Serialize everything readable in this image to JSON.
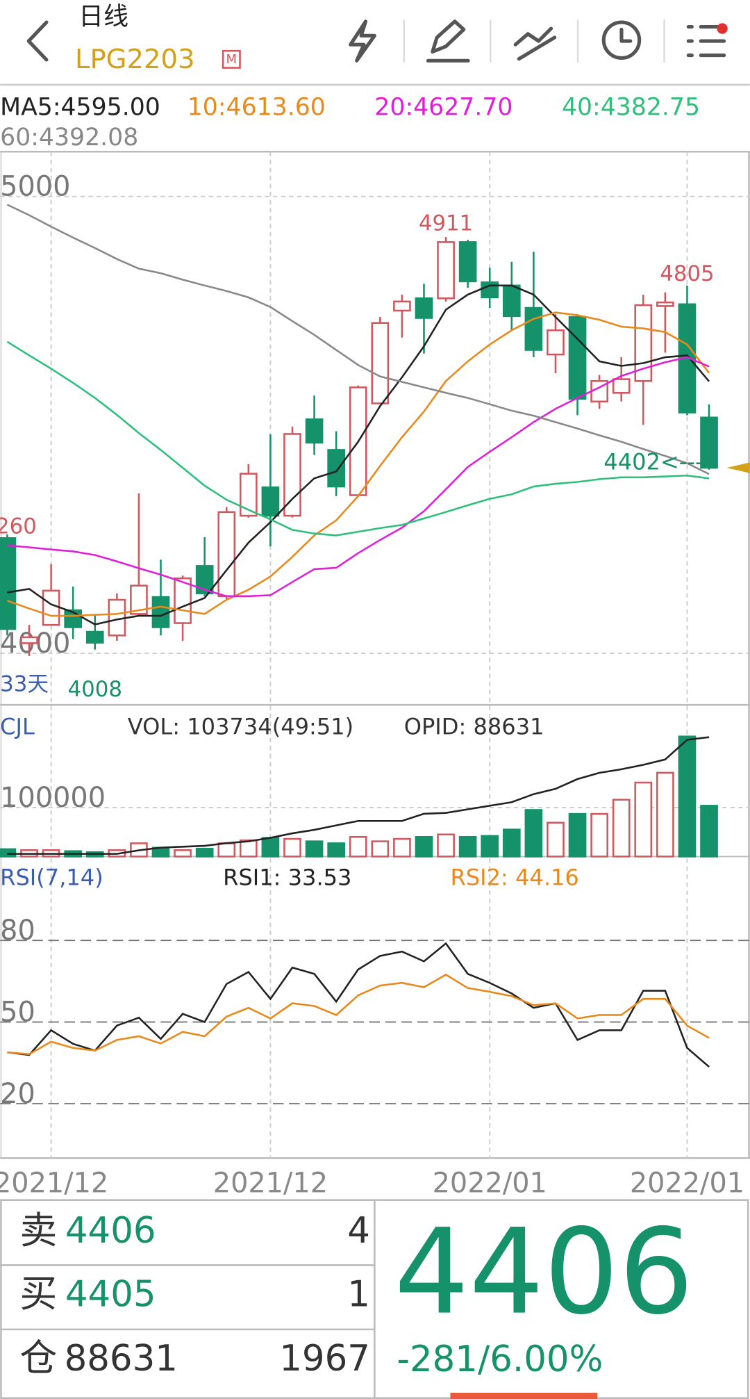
{
  "header": {
    "title": "日线",
    "symbol": "LPG2203",
    "badge": "M"
  },
  "chart_data": [
    {
      "type": "candlestick",
      "period_label": "33天",
      "marker_label": "4402<---",
      "categories": [
        null,
        null,
        "2021/12",
        null,
        null,
        null,
        null,
        null,
        null,
        null,
        null,
        null,
        "2021/12",
        null,
        null,
        null,
        null,
        null,
        null,
        null,
        null,
        null,
        "2022/01",
        null,
        null,
        null,
        null,
        null,
        null,
        null,
        null,
        "2022/01",
        null
      ],
      "open": [
        4252,
        4022,
        4062,
        4094,
        4047,
        4039,
        4086,
        4123,
        4066,
        4191,
        4125,
        4301,
        4363,
        4301,
        4512,
        4445,
        4346,
        4547,
        4750,
        4777,
        4777,
        4900,
        4812,
        4805,
        4756,
        4654,
        4736,
        4551,
        4570,
        4596,
        4760,
        4764,
        4516
      ],
      "close": [
        4053,
        4035,
        4137,
        4057,
        4023,
        4117,
        4148,
        4057,
        4164,
        4131,
        4309,
        4393,
        4301,
        4480,
        4461,
        4365,
        4582,
        4723,
        4770,
        4734,
        4900,
        4814,
        4779,
        4738,
        4664,
        4707,
        4557,
        4596,
        4600,
        4762,
        4768,
        4527,
        4406
      ],
      "high": [
        4260,
        4062,
        4195,
        4146,
        4082,
        4131,
        4350,
        4205,
        4170,
        4254,
        4320,
        4414,
        4479,
        4496,
        4564,
        4486,
        4586,
        4736,
        4785,
        4809,
        4911,
        4905,
        4844,
        4857,
        4879,
        4742,
        4742,
        4609,
        4648,
        4785,
        4790,
        4805,
        4545
      ],
      "low": [
        4039,
        3994,
        4062,
        4031,
        4008,
        4027,
        4082,
        4039,
        4027,
        4125,
        4117,
        4297,
        4234,
        4297,
        4434,
        4344,
        4344,
        4547,
        4691,
        4656,
        4770,
        4800,
        4756,
        4707,
        4648,
        4613,
        4521,
        4535,
        4551,
        4500,
        4658,
        4521,
        4402
      ],
      "up_color": "#d0585e",
      "down_color": "#15926a",
      "ylim": [
        3887,
        5098
      ],
      "yticks": [
        4000,
        5000
      ],
      "grid": true,
      "series": [
        {
          "name": "MA5:4595.00",
          "color": "#222222",
          "values": [
            4133,
            4141,
            4107,
            4090,
            4063,
            4074,
            4082,
            4082,
            4102,
            4121,
            4182,
            4242,
            4287,
            4338,
            4383,
            4398,
            4463,
            4541,
            4604,
            4672,
            4752,
            4785,
            4805,
            4805,
            4785,
            4736,
            4688,
            4639,
            4629,
            4635,
            4648,
            4652,
            4595
          ]
        },
        {
          "name": "10:4613.60",
          "color": "#e8891c",
          "values": [
            4115,
            4098,
            4082,
            4082,
            4084,
            4086,
            4094,
            4102,
            4094,
            4086,
            4117,
            4139,
            4168,
            4211,
            4258,
            4291,
            4344,
            4410,
            4473,
            4529,
            4596,
            4639,
            4676,
            4707,
            4732,
            4746,
            4740,
            4730,
            4715,
            4711,
            4703,
            4676,
            4613.6
          ]
        },
        {
          "name": "20:4627.70",
          "color": "#e020d8",
          "values": [
            4236,
            4232,
            4227,
            4223,
            4215,
            4201,
            4186,
            4172,
            4156,
            4139,
            4125,
            4125,
            4127,
            4156,
            4184,
            4187,
            4219,
            4248,
            4275,
            4311,
            4359,
            4408,
            4441,
            4473,
            4506,
            4535,
            4559,
            4582,
            4607,
            4623,
            4637,
            4648,
            4627.7
          ]
        },
        {
          "name": "40:4382.75",
          "color": "#2fbf7d",
          "values": [
            4682,
            4652,
            4623,
            4592,
            4559,
            4522,
            4482,
            4445,
            4406,
            4367,
            4336,
            4314,
            4293,
            4270,
            4262,
            4258,
            4266,
            4274,
            4281,
            4295,
            4309,
            4324,
            4338,
            4348,
            4365,
            4371,
            4375,
            4381,
            4385,
            4385,
            4387,
            4389,
            4382.75
          ]
        },
        {
          "name": "60:4392.08",
          "color": "#888888",
          "values": [
            4982,
            4959,
            4934,
            4910,
            4887,
            4863,
            4842,
            4832,
            4818,
            4805,
            4793,
            4779,
            4758,
            4727,
            4697,
            4664,
            4631,
            4606,
            4594,
            4582,
            4570,
            4559,
            4545,
            4531,
            4520,
            4506,
            4492,
            4477,
            4463,
            4447,
            4432,
            4416,
            4392.08
          ]
        }
      ]
    },
    {
      "type": "bar",
      "title": "CJL",
      "ylim": [
        0,
        275000
      ],
      "yticks": [
        100000
      ],
      "y2lim": [
        0,
        100000
      ],
      "grid": true,
      "series": [
        {
          "name": "VOL: 103734(49:51)",
          "values": [
            15000,
            13000,
            13000,
            11000,
            9000,
            13000,
            27000,
            18000,
            13000,
            16000,
            27000,
            33000,
            38000,
            36000,
            31000,
            27000,
            40000,
            31000,
            36000,
            40000,
            45000,
            40000,
            42000,
            55000,
            95000,
            69000,
            87000,
            87000,
            116000,
            151000,
            171000,
            245000,
            103734
          ]
        },
        {
          "name": "OPID: 88631",
          "color": "#222222",
          "axis": "y2",
          "values": [
            1983,
            1983,
            1983,
            1983,
            1983,
            1983,
            4627,
            6610,
            7271,
            7932,
            9915,
            11237,
            13881,
            17186,
            19830,
            23135,
            26440,
            26440,
            26440,
            31728,
            32389,
            35033,
            37677,
            40321,
            46270,
            50236,
            57507,
            62134,
            64778,
            68083,
            72049,
            86591,
            88631
          ]
        }
      ]
    },
    {
      "type": "line",
      "title": "RSI(7,14)",
      "ylim": [
        0,
        100
      ],
      "yticks": [
        20,
        50,
        80
      ],
      "grid": true,
      "series": [
        {
          "name": "RSI1: 33.53",
          "color": "#222222",
          "values": [
            38.9,
            37.9,
            47,
            42,
            39.5,
            48.7,
            51.6,
            43.8,
            53,
            50,
            64,
            68.4,
            58.5,
            70,
            67.7,
            57.5,
            69.3,
            74.3,
            75.9,
            72.3,
            78.9,
            67.7,
            64.4,
            60.5,
            55.2,
            56.9,
            43.4,
            47,
            47,
            61.5,
            61.5,
            40.5,
            33.53
          ]
        },
        {
          "name": "RSI2: 44.16",
          "color": "#e8891c",
          "values": [
            38.9,
            38.2,
            42.8,
            40.5,
            39.5,
            43.4,
            44.8,
            42.1,
            46.4,
            44.8,
            52,
            55.2,
            51.3,
            56.9,
            55.9,
            52.6,
            59.8,
            63.4,
            64.4,
            62.8,
            67.4,
            62.5,
            61.1,
            59.5,
            56.2,
            56.9,
            51.3,
            52.6,
            52.6,
            58.5,
            58.5,
            48.7,
            44.16
          ]
        }
      ]
    }
  ],
  "quote": {
    "rows": [
      {
        "label": "卖",
        "price": 4406,
        "qty": 4
      },
      {
        "label": "买",
        "price": 4405,
        "qty": 1
      },
      {
        "label": "仓",
        "price": 88631,
        "qty": 1967
      }
    ],
    "last": 4406,
    "change": "-281/6.00%"
  }
}
